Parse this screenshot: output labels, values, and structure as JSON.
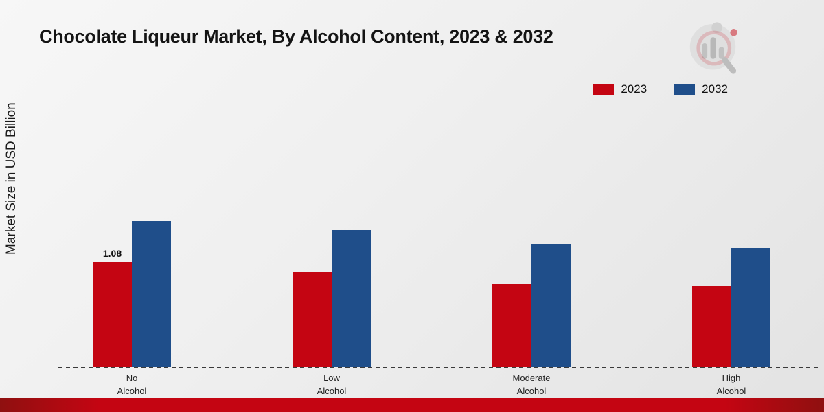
{
  "title": "Chocolate Liqueur Market, By Alcohol Content, 2023 & 2032",
  "ylabel": "Market Size in USD Billion",
  "legend": [
    {
      "label": "2023",
      "color": "#c40512"
    },
    {
      "label": "2032",
      "color": "#1f4e8a"
    }
  ],
  "chart_data": {
    "type": "bar",
    "title": "Chocolate Liqueur Market, By Alcohol Content, 2023 & 2032",
    "xlabel": "",
    "ylabel": "Market Size in USD Billion",
    "categories": [
      "No\nAlcohol",
      "Low\nAlcohol",
      "Moderate\nAlcohol",
      "High\nAlcohol"
    ],
    "series": [
      {
        "name": "2023",
        "color": "#c40512",
        "values": [
          1.08,
          0.98,
          0.86,
          0.84
        ]
      },
      {
        "name": "2032",
        "color": "#1f4e8a",
        "values": [
          1.5,
          1.41,
          1.27,
          1.23
        ]
      }
    ],
    "annotations": [
      {
        "series_index": 0,
        "category_index": 0,
        "text": "1.08"
      }
    ],
    "ylim": [
      0,
      3
    ],
    "grid": false,
    "legend_position": "top-right",
    "baseline_style": "dashed"
  },
  "colors": {
    "red": "#c40512",
    "blue": "#1f4e8a",
    "bottom_strip": "#c40512"
  }
}
